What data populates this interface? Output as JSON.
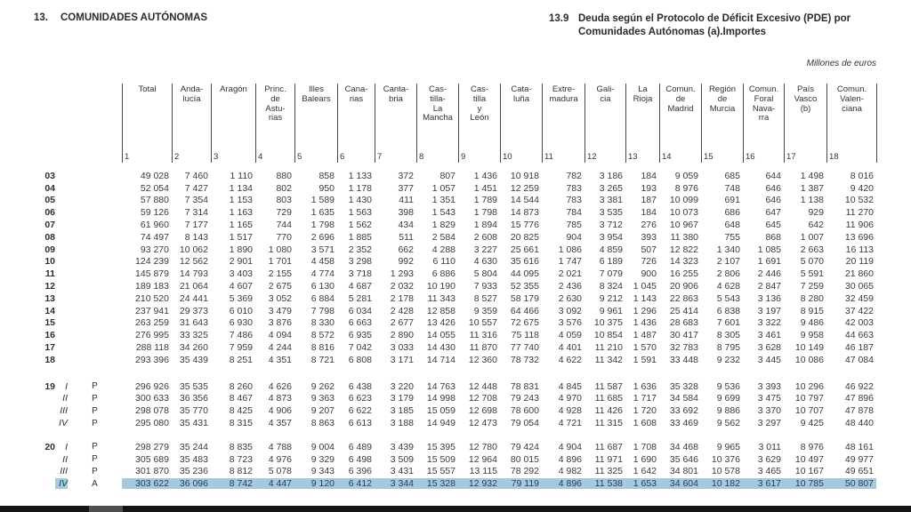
{
  "page": {
    "section_number": "13.",
    "section_title": "COMUNIDADES AUTÓNOMAS",
    "table_number": "13.9",
    "table_title_line1": "Deuda según el Protocolo de Déficit Excesivo (PDE) por",
    "table_title_line2": "Comunidades Autónomas (a).Importes",
    "units_note": "Millones de euros"
  },
  "colors": {
    "highlight_row": "#a6c9dc",
    "highlight_text": "#1e3e4f",
    "text": "#3a3a3a",
    "bottom_bar": "#141414"
  },
  "table": {
    "columns": [
      {
        "label": "Total",
        "num": "1"
      },
      {
        "label": "Anda-\nlucía",
        "num": "2"
      },
      {
        "label": "Aragón",
        "num": "3"
      },
      {
        "label": "Princ.\nde\nAstu-\nrias",
        "num": "4"
      },
      {
        "label": "Illes\nBalears",
        "num": "5"
      },
      {
        "label": "Cana-\nrias",
        "num": "6"
      },
      {
        "label": "Canta-\nbria",
        "num": "7"
      },
      {
        "label": "Cas-\ntilla-\nLa\nMancha",
        "num": "8"
      },
      {
        "label": "Cas-\ntilla\ny\nLeón",
        "num": "9"
      },
      {
        "label": "Cata-\nluña",
        "num": "10"
      },
      {
        "label": "Extre-\nmadura",
        "num": "11"
      },
      {
        "label": "Gali-\ncia",
        "num": "12"
      },
      {
        "label": "La\nRioja",
        "num": "13"
      },
      {
        "label": "Comun.\nde\nMadrid",
        "num": "14"
      },
      {
        "label": "Región\nde\nMurcia",
        "num": "15"
      },
      {
        "label": "Comun.\nForal\nNava-\nrra",
        "num": "16"
      },
      {
        "label": "País\nVasco\n(b)",
        "num": "17"
      },
      {
        "label": "Comun.\nValen-\nciana",
        "num": "18"
      }
    ],
    "rows": [
      {
        "year": "03",
        "quarter": "",
        "marker": "",
        "group": "annual",
        "highlight": false,
        "values": [
          "49 028",
          "7 460",
          "1 110",
          "880",
          "858",
          "1 133",
          "372",
          "807",
          "1 436",
          "10 918",
          "782",
          "3 186",
          "184",
          "9 059",
          "685",
          "644",
          "1 498",
          "8 016"
        ]
      },
      {
        "year": "04",
        "quarter": "",
        "marker": "",
        "group": "annual",
        "highlight": false,
        "values": [
          "52 054",
          "7 427",
          "1 134",
          "802",
          "950",
          "1 178",
          "377",
          "1 057",
          "1 451",
          "12 259",
          "783",
          "3 265",
          "193",
          "8 976",
          "748",
          "646",
          "1 387",
          "9 420"
        ]
      },
      {
        "year": "05",
        "quarter": "",
        "marker": "",
        "group": "annual",
        "highlight": false,
        "values": [
          "57 880",
          "7 354",
          "1 153",
          "803",
          "1 589",
          "1 430",
          "411",
          "1 351",
          "1 789",
          "14 544",
          "783",
          "3 381",
          "187",
          "10 099",
          "691",
          "646",
          "1 138",
          "10 532"
        ]
      },
      {
        "year": "06",
        "quarter": "",
        "marker": "",
        "group": "annual",
        "highlight": false,
        "values": [
          "59 126",
          "7 314",
          "1 163",
          "729",
          "1 635",
          "1 563",
          "398",
          "1 543",
          "1 798",
          "14 873",
          "784",
          "3 535",
          "184",
          "10 073",
          "686",
          "647",
          "929",
          "11 270"
        ]
      },
      {
        "year": "07",
        "quarter": "",
        "marker": "",
        "group": "annual",
        "highlight": false,
        "values": [
          "61 960",
          "7 177",
          "1 165",
          "744",
          "1 798",
          "1 562",
          "434",
          "1 829",
          "1 894",
          "15 776",
          "785",
          "3 712",
          "276",
          "10 967",
          "648",
          "645",
          "642",
          "11 906"
        ]
      },
      {
        "year": "08",
        "quarter": "",
        "marker": "",
        "group": "annual",
        "highlight": false,
        "values": [
          "74 497",
          "8 143",
          "1 517",
          "770",
          "2 696",
          "1 885",
          "511",
          "2 584",
          "2 608",
          "20 825",
          "904",
          "3 954",
          "393",
          "11 380",
          "755",
          "868",
          "1 007",
          "13 696"
        ]
      },
      {
        "year": "09",
        "quarter": "",
        "marker": "",
        "group": "annual",
        "highlight": false,
        "values": [
          "93 270",
          "10 062",
          "1 890",
          "1 080",
          "3 571",
          "2 352",
          "662",
          "4 288",
          "3 227",
          "25 661",
          "1 086",
          "4 859",
          "507",
          "12 822",
          "1 340",
          "1 085",
          "2 663",
          "16 113"
        ]
      },
      {
        "year": "10",
        "quarter": "",
        "marker": "",
        "group": "annual",
        "highlight": false,
        "values": [
          "124 239",
          "12 562",
          "2 901",
          "1 701",
          "4 458",
          "3 298",
          "992",
          "6 110",
          "4 630",
          "35 616",
          "1 747",
          "6 189",
          "726",
          "14 323",
          "2 107",
          "1 691",
          "5 070",
          "20 119"
        ]
      },
      {
        "year": "11",
        "quarter": "",
        "marker": "",
        "group": "annual",
        "highlight": false,
        "values": [
          "145 879",
          "14 793",
          "3 403",
          "2 155",
          "4 774",
          "3 718",
          "1 293",
          "6 886",
          "5 804",
          "44 095",
          "2 021",
          "7 079",
          "900",
          "16 255",
          "2 806",
          "2 446",
          "5 591",
          "21 860"
        ]
      },
      {
        "year": "12",
        "quarter": "",
        "marker": "",
        "group": "annual",
        "highlight": false,
        "values": [
          "189 183",
          "21 064",
          "4 607",
          "2 675",
          "6 130",
          "4 687",
          "2 032",
          "10 190",
          "7 933",
          "52 355",
          "2 436",
          "8 324",
          "1 045",
          "20 906",
          "4 628",
          "2 847",
          "7 259",
          "30 065"
        ]
      },
      {
        "year": "13",
        "quarter": "",
        "marker": "",
        "group": "annual",
        "highlight": false,
        "values": [
          "210 520",
          "24 441",
          "5 369",
          "3 052",
          "6 884",
          "5 281",
          "2 178",
          "11 343",
          "8 527",
          "58 179",
          "2 630",
          "9 212",
          "1 143",
          "22 863",
          "5 543",
          "3 136",
          "8 280",
          "32 459"
        ]
      },
      {
        "year": "14",
        "quarter": "",
        "marker": "",
        "group": "annual",
        "highlight": false,
        "values": [
          "237 941",
          "29 373",
          "6 010",
          "3 479",
          "7 798",
          "6 034",
          "2 428",
          "12 858",
          "9 359",
          "64 466",
          "3 092",
          "9 961",
          "1 296",
          "25 414",
          "6 838",
          "3 197",
          "8 915",
          "37 422"
        ]
      },
      {
        "year": "15",
        "quarter": "",
        "marker": "",
        "group": "annual",
        "highlight": false,
        "values": [
          "263 259",
          "31 643",
          "6 930",
          "3 876",
          "8 330",
          "6 663",
          "2 677",
          "13 426",
          "10 557",
          "72 675",
          "3 576",
          "10 375",
          "1 436",
          "28 683",
          "7 601",
          "3 322",
          "9 486",
          "42 003"
        ]
      },
      {
        "year": "16",
        "quarter": "",
        "marker": "",
        "group": "annual",
        "highlight": false,
        "values": [
          "276 995",
          "33 325",
          "7 486",
          "4 094",
          "8 572",
          "6 935",
          "2 890",
          "14 055",
          "11 316",
          "75 118",
          "4 059",
          "10 854",
          "1 487",
          "30 417",
          "8 305",
          "3 461",
          "9 958",
          "44 663"
        ]
      },
      {
        "year": "17",
        "quarter": "",
        "marker": "",
        "group": "annual",
        "highlight": false,
        "values": [
          "288 118",
          "34 260",
          "7 959",
          "4 244",
          "8 816",
          "7 042",
          "3 033",
          "14 430",
          "11 870",
          "77 740",
          "4 401",
          "11 210",
          "1 570",
          "32 783",
          "8 795",
          "3 628",
          "10 149",
          "46 187"
        ]
      },
      {
        "year": "18",
        "quarter": "",
        "marker": "",
        "group": "annual",
        "highlight": false,
        "values": [
          "293 396",
          "35 439",
          "8 251",
          "4 351",
          "8 721",
          "6 808",
          "3 171",
          "14 714",
          "12 360",
          "78 732",
          "4 622",
          "11 342",
          "1 591",
          "33 448",
          "9 232",
          "3 445",
          "10 086",
          "47 084"
        ]
      },
      {
        "year": "19",
        "quarter": "I",
        "marker": "P",
        "group": "q2019",
        "highlight": false,
        "values": [
          "296 926",
          "35 535",
          "8 260",
          "4 626",
          "9 262",
          "6 438",
          "3 220",
          "14 763",
          "12 448",
          "78 831",
          "4 845",
          "11 587",
          "1 636",
          "35 328",
          "9 536",
          "3 393",
          "10 296",
          "46 922"
        ]
      },
      {
        "year": "",
        "quarter": "II",
        "marker": "P",
        "group": "q2019",
        "highlight": false,
        "values": [
          "300 633",
          "36 356",
          "8 467",
          "4 873",
          "9 363",
          "6 623",
          "3 179",
          "14 998",
          "12 708",
          "79 243",
          "4 970",
          "11 685",
          "1 717",
          "34 584",
          "9 699",
          "3 475",
          "10 797",
          "47 896"
        ]
      },
      {
        "year": "",
        "quarter": "III",
        "marker": "P",
        "group": "q2019",
        "highlight": false,
        "values": [
          "298 078",
          "35 770",
          "8 425",
          "4 906",
          "9 207",
          "6 622",
          "3 185",
          "15 059",
          "12 698",
          "78 600",
          "4 928",
          "11 426",
          "1 720",
          "33 692",
          "9 886",
          "3 370",
          "10 707",
          "47 878"
        ]
      },
      {
        "year": "",
        "quarter": "IV",
        "marker": "P",
        "group": "q2019",
        "highlight": false,
        "values": [
          "295 080",
          "35 431",
          "8 315",
          "4 357",
          "8 863",
          "6 613",
          "3 188",
          "14 949",
          "12 473",
          "79 054",
          "4 721",
          "11 315",
          "1 608",
          "33 469",
          "9 562",
          "3 297",
          "9 425",
          "48 440"
        ]
      },
      {
        "year": "20",
        "quarter": "I",
        "marker": "P",
        "group": "q2020",
        "highlight": false,
        "values": [
          "298 279",
          "35 244",
          "8 835",
          "4 788",
          "9 004",
          "6 489",
          "3 439",
          "15 395",
          "12 780",
          "79 424",
          "4 904",
          "11 687",
          "1 708",
          "34 468",
          "9 965",
          "3 011",
          "8 976",
          "48 161"
        ]
      },
      {
        "year": "",
        "quarter": "II",
        "marker": "P",
        "group": "q2020",
        "highlight": false,
        "values": [
          "305 689",
          "35 483",
          "8 723",
          "4 976",
          "9 329",
          "6 498",
          "3 509",
          "15 509",
          "12 964",
          "80 015",
          "4 896",
          "11 971",
          "1 690",
          "35 646",
          "10 376",
          "3 629",
          "10 497",
          "49 977"
        ]
      },
      {
        "year": "",
        "quarter": "III",
        "marker": "P",
        "group": "q2020",
        "highlight": false,
        "values": [
          "301 870",
          "35 236",
          "8 812",
          "5 078",
          "9 343",
          "6 396",
          "3 431",
          "15 557",
          "13 115",
          "78 292",
          "4 982",
          "11 325",
          "1 642",
          "34 801",
          "10 578",
          "3 465",
          "10 167",
          "49 651"
        ]
      },
      {
        "year": "",
        "quarter": "IV",
        "marker": "A",
        "group": "q2020",
        "highlight": true,
        "values": [
          "303 622",
          "36 096",
          "8 742",
          "4 447",
          "9 120",
          "6 412",
          "3 344",
          "15 328",
          "12 932",
          "79 119",
          "4 896",
          "11 538",
          "1 653",
          "34 604",
          "10 182",
          "3 617",
          "10 785",
          "50 807"
        ]
      }
    ]
  }
}
